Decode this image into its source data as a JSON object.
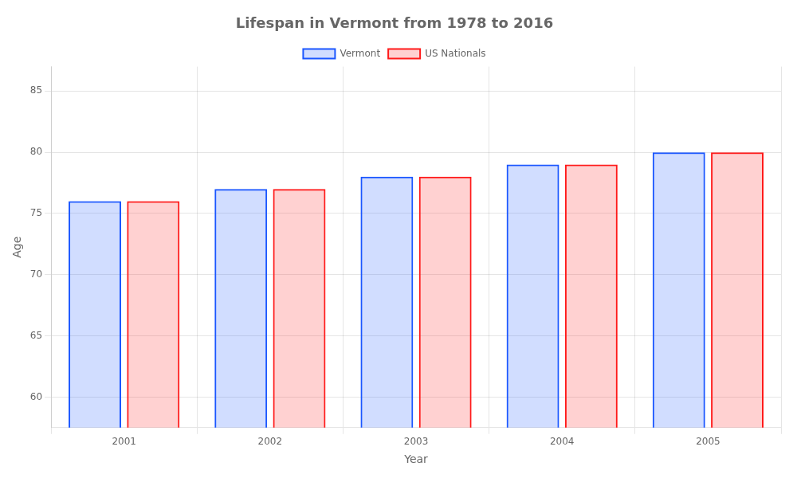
{
  "chart_data": {
    "type": "bar",
    "title": "Lifespan in Vermont from 1978 to 2016",
    "x_label": "Year",
    "y_label": "Age",
    "categories": [
      "2001",
      "2002",
      "2003",
      "2004",
      "2005"
    ],
    "series": [
      {
        "name": "Vermont",
        "color": "#1a56ff",
        "values": [
          76.0,
          77.0,
          78.0,
          79.0,
          80.0
        ]
      },
      {
        "name": "US Nationals",
        "color": "#ff1a1a",
        "values": [
          76.0,
          77.0,
          78.0,
          79.0,
          80.0
        ]
      }
    ],
    "ylim": [
      57.5,
      87
    ],
    "yticks": [
      60,
      65,
      70,
      75,
      80,
      85
    ],
    "grid": true,
    "legend": "top"
  }
}
